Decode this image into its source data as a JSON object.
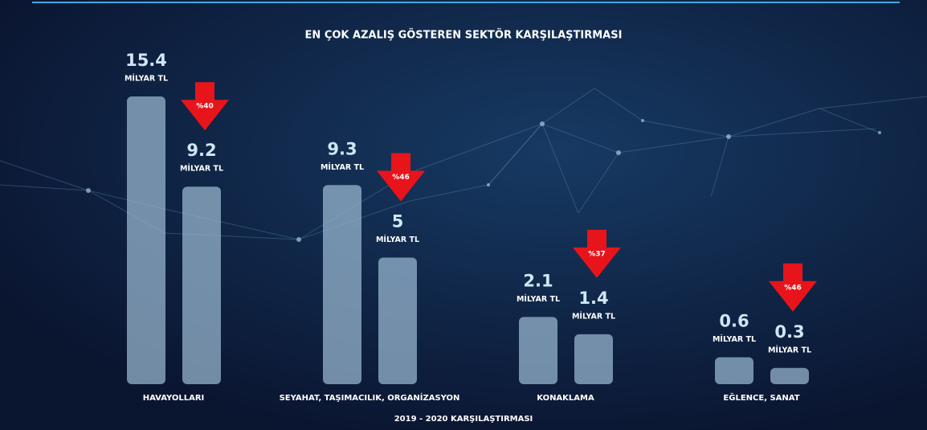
{
  "chart_data": {
    "type": "bar",
    "title": "EN ÇOK AZALIŞ GÖSTEREN SEKTÖR KARŞILAŞTIRMASI",
    "subtitle": "2019 - 2020 KARŞILAŞTIRMASI",
    "categories": [
      "HAVAYOLLARI",
      "SEYAHAT, TAŞIMACILIK, ORGANİZASYON",
      "KONAKLAMA",
      "EĞLENCE, SANAT"
    ],
    "unit": "MİLYAR TL",
    "series": [
      {
        "color": "#9bbad3",
        "values": [
          15.4,
          9.3,
          2.1,
          0.6
        ]
      },
      {
        "color": "#9bbad3",
        "values": [
          9.2,
          5,
          1.4,
          0.3
        ]
      }
    ],
    "changes": [
      40,
      46,
      37,
      46
    ],
    "change_labels": [
      "%40",
      "%46",
      "%37",
      "%46"
    ],
    "change_color": "#e8141b"
  }
}
